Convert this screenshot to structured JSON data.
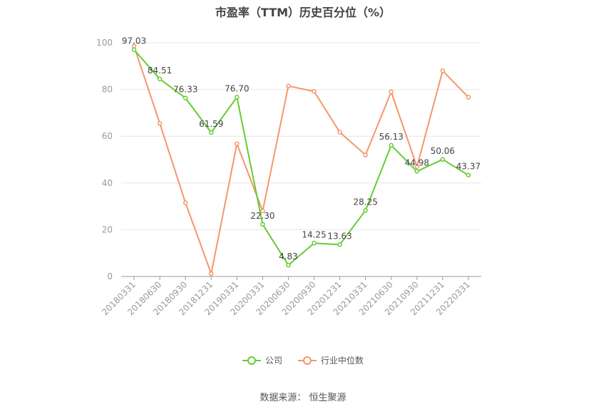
{
  "title": "市盈率（TTM）历史百分位（%）",
  "source": "数据来源：  恒生聚源",
  "colors": {
    "company": "#66cc33",
    "industry": "#f4966b",
    "grid": "#e6e6e6",
    "axis": "#999999"
  },
  "chart_data": {
    "type": "line",
    "title": "市盈率（TTM）历史百分位（%）",
    "categories": [
      "20180331",
      "20180630",
      "20180930",
      "20181231",
      "20190331",
      "20200331",
      "20200630",
      "20200930",
      "20201231",
      "20210331",
      "20210630",
      "20210930",
      "20211231",
      "20220331"
    ],
    "ylim": [
      0,
      100
    ],
    "yticks": [
      0,
      20,
      40,
      60,
      80,
      100
    ],
    "grid": true,
    "legend_position": "bottom",
    "series": [
      {
        "name": "公司",
        "values": [
          97.03,
          84.51,
          76.33,
          61.59,
          76.7,
          22.3,
          4.83,
          14.25,
          13.63,
          28.25,
          56.13,
          44.98,
          50.06,
          43.37
        ],
        "labels": [
          "97.03",
          "84.51",
          "76.33",
          "61.59",
          "76.70",
          "22.30",
          "4.83",
          "14.25",
          "13.63",
          "28.25",
          "56.13",
          "44.98",
          "50.06",
          "43.37"
        ]
      },
      {
        "name": "行业中位数",
        "values": [
          98.5,
          65.5,
          31.5,
          1.2,
          56.8,
          28.0,
          81.5,
          79.2,
          61.7,
          52.0,
          79.0,
          47.0,
          88.0,
          76.7
        ]
      }
    ]
  }
}
